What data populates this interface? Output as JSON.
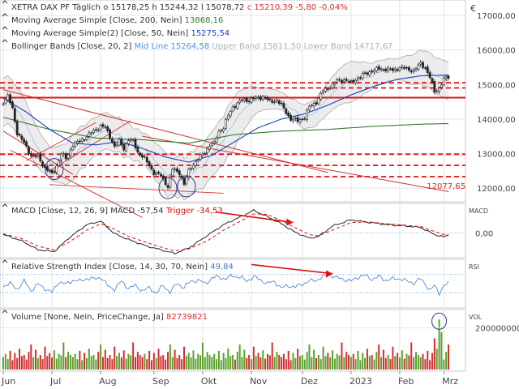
{
  "chart_data": [
    {
      "panel": "price",
      "type": "line",
      "title": "XETRA DAX PF",
      "period": "Täglich",
      "ohlc": {
        "o": "15178,25",
        "h": "15244,32",
        "l": "15078,72",
        "c": "15210,39",
        "change": "-5,80",
        "change_pct": "-0,04%"
      },
      "currency_icon": "euro-icon",
      "currency_symbol": "€",
      "legend": [
        {
          "text": "Moving Average Simple",
          "params": "[Close, 200, Nein]",
          "value": "13868,16",
          "color": "#2e7d32"
        },
        {
          "text": "Moving Average Simple(2)",
          "params": "[Close, 50, Nein]",
          "value": "15275,54",
          "color": "#1e3fbf"
        },
        {
          "text": "Bollinger Bands",
          "params": "[Close, 20, 2]",
          "mid_label": "Mid Line",
          "mid_value": "15264,58",
          "upper_label": "Upper Band",
          "upper_value": "15811,50",
          "lower_label": "Lower Band",
          "lower_value": "14717,67",
          "mid_color": "#4d90e8",
          "band_color": "#aaaaaa"
        }
      ],
      "x_months": [
        {
          "label": "Jun",
          "t": 0
        },
        {
          "label": "Jul",
          "t": 21
        },
        {
          "label": "Aug",
          "t": 42
        },
        {
          "label": "Sep",
          "t": 65
        },
        {
          "label": "Okt",
          "t": 86
        },
        {
          "label": "Nov",
          "t": 107
        },
        {
          "label": "Dez",
          "t": 129
        },
        {
          "label": "2023",
          "t": 150
        },
        {
          "label": "Feb",
          "t": 171
        },
        {
          "label": "Mrz",
          "t": 190
        }
      ],
      "y_ticks": [
        {
          "label": "17000,00",
          "v": 17000
        },
        {
          "label": "16000,00",
          "v": 16000
        },
        {
          "label": "15000,00",
          "v": 15000
        },
        {
          "label": "14000,00",
          "v": 14000
        },
        {
          "label": "13000,00",
          "v": 13000
        },
        {
          "label": "12000,00",
          "v": 12000
        }
      ],
      "y_range": [
        11650,
        17400
      ],
      "price_anchors": [
        [
          0,
          14500
        ],
        [
          2,
          14650
        ],
        [
          4,
          14300
        ],
        [
          6,
          13600
        ],
        [
          9,
          13300
        ],
        [
          12,
          12950
        ],
        [
          15,
          12900
        ],
        [
          18,
          12600
        ],
        [
          21,
          12400
        ],
        [
          23,
          12650
        ],
        [
          25,
          13000
        ],
        [
          27,
          12850
        ],
        [
          30,
          13250
        ],
        [
          33,
          13350
        ],
        [
          36,
          13500
        ],
        [
          39,
          13650
        ],
        [
          42,
          13800
        ],
        [
          44,
          13750
        ],
        [
          46,
          13500
        ],
        [
          48,
          13200
        ],
        [
          50,
          13350
        ],
        [
          52,
          13150
        ],
        [
          54,
          13400
        ],
        [
          56,
          13350
        ],
        [
          58,
          13050
        ],
        [
          61,
          12850
        ],
        [
          63,
          12650
        ],
        [
          65,
          12450
        ],
        [
          68,
          12350
        ],
        [
          71,
          12050
        ],
        [
          73,
          12550
        ],
        [
          76,
          12450
        ],
        [
          78,
          12100
        ],
        [
          80,
          12500
        ],
        [
          82,
          12700
        ],
        [
          85,
          12900
        ],
        [
          87,
          13050
        ],
        [
          89,
          13250
        ],
        [
          91,
          13300
        ],
        [
          93,
          13650
        ],
        [
          95,
          13750
        ],
        [
          97,
          14100
        ],
        [
          99,
          14350
        ],
        [
          101,
          14450
        ],
        [
          103,
          14550
        ],
        [
          106,
          14550
        ],
        [
          109,
          14600
        ],
        [
          112,
          14650
        ],
        [
          115,
          14500
        ],
        [
          118,
          14550
        ],
        [
          121,
          14300
        ],
        [
          124,
          14000
        ],
        [
          127,
          13950
        ],
        [
          130,
          14050
        ],
        [
          132,
          14350
        ],
        [
          135,
          14500
        ],
        [
          138,
          14800
        ],
        [
          141,
          14950
        ],
        [
          144,
          15100
        ],
        [
          147,
          15150
        ],
        [
          150,
          15050
        ],
        [
          153,
          15200
        ],
        [
          156,
          15300
        ],
        [
          159,
          15400
        ],
        [
          162,
          15450
        ],
        [
          165,
          15450
        ],
        [
          168,
          15400
        ],
        [
          171,
          15500
        ],
        [
          174,
          15450
        ],
        [
          177,
          15400
        ],
        [
          180,
          15600
        ],
        [
          182,
          15500
        ],
        [
          184,
          15200
        ],
        [
          186,
          14800
        ],
        [
          188,
          14900
        ],
        [
          190,
          15150
        ],
        [
          192,
          15210
        ]
      ],
      "ma200_anchors": [
        [
          0,
          14050
        ],
        [
          20,
          13700
        ],
        [
          40,
          13450
        ],
        [
          60,
          13400
        ],
        [
          80,
          13300
        ],
        [
          100,
          13550
        ],
        [
          120,
          13650
        ],
        [
          140,
          13700
        ],
        [
          160,
          13790
        ],
        [
          180,
          13850
        ],
        [
          192,
          13868
        ]
      ],
      "ma50_anchors": [
        [
          0,
          14600
        ],
        [
          10,
          14200
        ],
        [
          20,
          13700
        ],
        [
          30,
          13300
        ],
        [
          40,
          13250
        ],
        [
          50,
          13350
        ],
        [
          60,
          13150
        ],
        [
          70,
          12900
        ],
        [
          80,
          12750
        ],
        [
          90,
          12950
        ],
        [
          100,
          13350
        ],
        [
          110,
          13750
        ],
        [
          120,
          14000
        ],
        [
          130,
          14150
        ],
        [
          140,
          14400
        ],
        [
          150,
          14700
        ],
        [
          160,
          14950
        ],
        [
          170,
          15150
        ],
        [
          180,
          15250
        ],
        [
          192,
          15276
        ]
      ],
      "boll_width_anchors": [
        [
          0,
          700
        ],
        [
          10,
          650
        ],
        [
          20,
          450
        ],
        [
          30,
          650
        ],
        [
          40,
          550
        ],
        [
          50,
          500
        ],
        [
          60,
          450
        ],
        [
          70,
          600
        ],
        [
          80,
          600
        ],
        [
          90,
          650
        ],
        [
          100,
          750
        ],
        [
          110,
          350
        ],
        [
          120,
          250
        ],
        [
          130,
          350
        ],
        [
          140,
          450
        ],
        [
          150,
          600
        ],
        [
          160,
          350
        ],
        [
          170,
          300
        ],
        [
          180,
          500
        ],
        [
          192,
          547
        ]
      ],
      "h_levels": [
        {
          "v": 15050,
          "style": "dashed"
        },
        {
          "v": 14900,
          "style": "dashed"
        },
        {
          "v": 14620,
          "style": "solid"
        },
        {
          "v": 12980,
          "style": "dashed"
        },
        {
          "v": 12660,
          "style": "dashed"
        },
        {
          "v": 12330,
          "style": "dashed"
        }
      ],
      "trend_lines": [
        {
          "from": [
            0,
            14850
          ],
          "to": [
            140,
            12450
          ],
          "label": ""
        },
        {
          "from": [
            60,
            13500
          ],
          "to": [
            192,
            11900
          ],
          "label": "12077,65"
        },
        {
          "from": [
            0,
            13650
          ],
          "to": [
            30,
            12400
          ],
          "label": ""
        }
      ],
      "channel_lines": [
        {
          "from": [
            20,
            12100
          ],
          "to": [
            95,
            11850
          ]
        },
        {
          "from": [
            3,
            13100
          ],
          "to": [
            60,
            11150
          ]
        },
        {
          "from": [
            20,
            12500
          ],
          "to": [
            55,
            13950
          ]
        },
        {
          "from": [
            10,
            12800
          ],
          "to": [
            40,
            13900
          ]
        }
      ],
      "highlight_circles": [
        {
          "t": 22,
          "v": 12550
        },
        {
          "t": 71,
          "v": 12000
        },
        {
          "t": 79,
          "v": 12050
        }
      ],
      "last_label": "12077,65"
    },
    {
      "panel": "macd",
      "type": "line",
      "title": "MACD",
      "params": "[Close, 12, 26, 9]",
      "macd_label": "MACD",
      "macd_value": "-57,54",
      "trigger_label": "Trigger",
      "trigger_value": "-34,53",
      "axis_label": "MACD",
      "y_ticks": [
        {
          "label": "0,00",
          "v": 0
        }
      ],
      "y_range": [
        -520,
        620
      ],
      "macd_anchors": [
        [
          0,
          -40
        ],
        [
          8,
          -180
        ],
        [
          15,
          -380
        ],
        [
          22,
          -420
        ],
        [
          28,
          -130
        ],
        [
          36,
          180
        ],
        [
          42,
          260
        ],
        [
          48,
          -20
        ],
        [
          54,
          -150
        ],
        [
          62,
          -300
        ],
        [
          68,
          -380
        ],
        [
          74,
          -460
        ],
        [
          80,
          -340
        ],
        [
          88,
          -60
        ],
        [
          95,
          180
        ],
        [
          102,
          350
        ],
        [
          108,
          500
        ],
        [
          114,
          360
        ],
        [
          120,
          200
        ],
        [
          126,
          10
        ],
        [
          132,
          -120
        ],
        [
          136,
          -80
        ],
        [
          142,
          150
        ],
        [
          150,
          290
        ],
        [
          158,
          230
        ],
        [
          166,
          180
        ],
        [
          174,
          150
        ],
        [
          180,
          120
        ],
        [
          186,
          -40
        ],
        [
          190,
          -90
        ],
        [
          192,
          -57
        ]
      ],
      "trigger_anchors": [
        [
          0,
          -20
        ],
        [
          8,
          -130
        ],
        [
          15,
          -300
        ],
        [
          22,
          -380
        ],
        [
          28,
          -220
        ],
        [
          36,
          60
        ],
        [
          42,
          200
        ],
        [
          48,
          80
        ],
        [
          54,
          -80
        ],
        [
          62,
          -220
        ],
        [
          68,
          -320
        ],
        [
          74,
          -400
        ],
        [
          80,
          -360
        ],
        [
          88,
          -180
        ],
        [
          95,
          60
        ],
        [
          102,
          250
        ],
        [
          108,
          420
        ],
        [
          114,
          410
        ],
        [
          120,
          270
        ],
        [
          126,
          110
        ],
        [
          132,
          -40
        ],
        [
          136,
          -70
        ],
        [
          142,
          60
        ],
        [
          150,
          230
        ],
        [
          158,
          240
        ],
        [
          166,
          200
        ],
        [
          174,
          165
        ],
        [
          180,
          140
        ],
        [
          186,
          30
        ],
        [
          190,
          -40
        ],
        [
          192,
          -35
        ]
      ],
      "arrow": {
        "from": [
          92,
          460
        ],
        "to": [
          125,
          230
        ]
      }
    },
    {
      "panel": "rsi",
      "type": "line",
      "title": "Relative Strength Index",
      "params": "[Close, 14, 30, 70, Nein]",
      "value": "49,84",
      "axis_label": "RSI",
      "levels": [
        30,
        70
      ],
      "y_range": [
        0,
        100
      ],
      "rsi_anchors": [
        [
          0,
          45
        ],
        [
          3,
          50
        ],
        [
          6,
          38
        ],
        [
          9,
          55
        ],
        [
          12,
          35
        ],
        [
          15,
          48
        ],
        [
          18,
          40
        ],
        [
          21,
          30
        ],
        [
          24,
          55
        ],
        [
          27,
          48
        ],
        [
          30,
          58
        ],
        [
          33,
          55
        ],
        [
          36,
          62
        ],
        [
          39,
          60
        ],
        [
          42,
          65
        ],
        [
          45,
          45
        ],
        [
          48,
          38
        ],
        [
          51,
          55
        ],
        [
          54,
          40
        ],
        [
          57,
          45
        ],
        [
          60,
          35
        ],
        [
          63,
          40
        ],
        [
          66,
          30
        ],
        [
          69,
          45
        ],
        [
          72,
          32
        ],
        [
          75,
          50
        ],
        [
          78,
          42
        ],
        [
          81,
          55
        ],
        [
          84,
          58
        ],
        [
          87,
          50
        ],
        [
          90,
          62
        ],
        [
          93,
          65
        ],
        [
          96,
          60
        ],
        [
          99,
          68
        ],
        [
          102,
          64
        ],
        [
          105,
          56
        ],
        [
          108,
          65
        ],
        [
          111,
          58
        ],
        [
          114,
          50
        ],
        [
          117,
          55
        ],
        [
          120,
          40
        ],
        [
          123,
          46
        ],
        [
          126,
          42
        ],
        [
          129,
          50
        ],
        [
          132,
          55
        ],
        [
          135,
          58
        ],
        [
          138,
          65
        ],
        [
          141,
          70
        ],
        [
          144,
          62
        ],
        [
          147,
          60
        ],
        [
          150,
          55
        ],
        [
          153,
          65
        ],
        [
          156,
          68
        ],
        [
          159,
          60
        ],
        [
          162,
          65
        ],
        [
          165,
          58
        ],
        [
          168,
          60
        ],
        [
          171,
          62
        ],
        [
          174,
          55
        ],
        [
          177,
          52
        ],
        [
          180,
          60
        ],
        [
          182,
          50
        ],
        [
          184,
          35
        ],
        [
          186,
          45
        ],
        [
          188,
          30
        ],
        [
          190,
          45
        ],
        [
          192,
          50
        ]
      ],
      "arrow": {
        "from": [
          107,
          92
        ],
        "to": [
          142,
          72
        ]
      }
    },
    {
      "panel": "volume",
      "type": "bar",
      "title": "Volume",
      "params": "[None, Nein, PriceChange, Ja]",
      "value": "82739821",
      "axis_label": "VOL",
      "y_ticks": [
        {
          "label": "200000000",
          "v": 200000000
        }
      ],
      "y_range": [
        0,
        280000000
      ],
      "volume_pattern": [
        60,
        75,
        50,
        90,
        45,
        80,
        55,
        100,
        65,
        70,
        48,
        85,
        120,
        60,
        95,
        55,
        70,
        50,
        110,
        65,
        80,
        58,
        92,
        52,
        75,
        68,
        130,
        60,
        85,
        70
      ],
      "spike_bars": [
        {
          "t": 188,
          "v": 240000000
        },
        {
          "t": 189,
          "v": 180000000
        },
        {
          "t": 186,
          "v": 150000000
        }
      ],
      "circle_t": 188
    }
  ]
}
